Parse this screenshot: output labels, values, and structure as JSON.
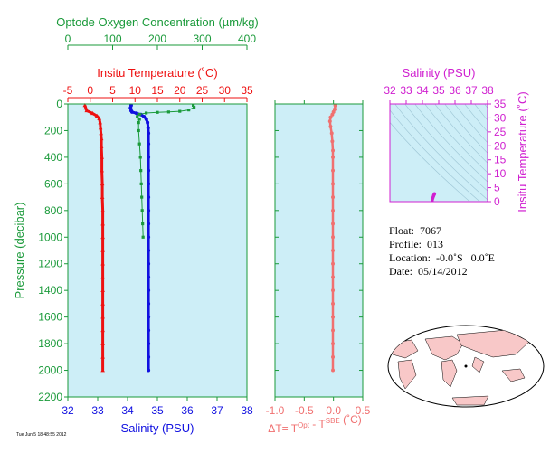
{
  "info": {
    "float_label": "Float:",
    "float_value": "7067",
    "profile_label": "Profile:",
    "profile_value": "013",
    "location_label": "Location:",
    "location_value": "-0.0˚S   0.0˚E",
    "date_label": "Date:",
    "date_value": "05/14/2012"
  },
  "stamp": "Tue Jun 5 18:48:55 2012",
  "colors": {
    "panel_bg": "#cdeef7",
    "oxygen": "#1a9a3a",
    "temperature": "#ee1111",
    "salinity": "#1010e0",
    "dt": "#f07070",
    "ts": "#d020d0",
    "land": "#f8c8c8"
  },
  "chart_data": [
    {
      "type": "line",
      "panel": "profiles",
      "ylabel": "Pressure (decibar)",
      "y_ticks": [
        0,
        200,
        400,
        600,
        800,
        1000,
        1200,
        1400,
        1600,
        1800,
        2000,
        2200
      ],
      "ylim": [
        2200,
        0
      ],
      "axes": {
        "salinity": {
          "label": "Salinity (PSU)",
          "lim": [
            32,
            38
          ],
          "ticks": [
            32,
            33,
            34,
            35,
            36,
            37,
            38
          ]
        },
        "temperature": {
          "label": "Insitu Temperature (˚C)",
          "lim": [
            -5,
            35
          ],
          "ticks": [
            -5,
            0,
            5,
            10,
            15,
            20,
            25,
            30,
            35
          ]
        },
        "oxygen": {
          "label": "Optode Oxygen Concentration (µm/kg)",
          "lim": [
            0,
            400
          ],
          "ticks": [
            0,
            100,
            200,
            300,
            400
          ]
        }
      },
      "series": [
        {
          "key": "temperature",
          "axis": "temperature",
          "marker": "triangle",
          "points": [
            [
              -1.2,
              10
            ],
            [
              -1.0,
              30
            ],
            [
              -0.8,
              50
            ],
            [
              0.5,
              70
            ],
            [
              1.5,
              90
            ],
            [
              2.0,
              110
            ],
            [
              2.2,
              140
            ],
            [
              2.3,
              180
            ],
            [
              2.4,
              220
            ],
            [
              2.5,
              260
            ],
            [
              2.5,
              320
            ],
            [
              2.6,
              400
            ],
            [
              2.6,
              500
            ],
            [
              2.7,
              600
            ],
            [
              2.7,
              700
            ],
            [
              2.8,
              800
            ],
            [
              2.8,
              900
            ],
            [
              2.8,
              1000
            ],
            [
              2.8,
              1100
            ],
            [
              2.8,
              1200
            ],
            [
              2.8,
              1300
            ],
            [
              2.8,
              1400
            ],
            [
              2.8,
              1500
            ],
            [
              2.8,
              1600
            ],
            [
              2.8,
              1700
            ],
            [
              2.8,
              1800
            ],
            [
              2.8,
              1900
            ],
            [
              2.8,
              2000
            ]
          ]
        },
        {
          "key": "salinity",
          "axis": "salinity",
          "marker": "circle",
          "points": [
            [
              34.12,
              10
            ],
            [
              34.1,
              30
            ],
            [
              34.12,
              50
            ],
            [
              34.15,
              60
            ],
            [
              34.3,
              70
            ],
            [
              34.45,
              80
            ],
            [
              34.55,
              95
            ],
            [
              34.63,
              115
            ],
            [
              34.67,
              140
            ],
            [
              34.69,
              180
            ],
            [
              34.7,
              220
            ],
            [
              34.7,
              300
            ],
            [
              34.7,
              400
            ],
            [
              34.7,
              500
            ],
            [
              34.7,
              600
            ],
            [
              34.7,
              700
            ],
            [
              34.7,
              800
            ],
            [
              34.7,
              900
            ],
            [
              34.7,
              1000
            ],
            [
              34.7,
              1100
            ],
            [
              34.7,
              1200
            ],
            [
              34.7,
              1300
            ],
            [
              34.7,
              1400
            ],
            [
              34.7,
              1500
            ],
            [
              34.7,
              1600
            ],
            [
              34.7,
              1700
            ],
            [
              34.7,
              1800
            ],
            [
              34.7,
              1900
            ],
            [
              34.7,
              2000
            ]
          ]
        },
        {
          "key": "oxygen",
          "axis": "oxygen",
          "marker": "square",
          "points": [
            [
              280,
              10
            ],
            [
              282,
              25
            ],
            [
              270,
              45
            ],
            [
              250,
              55
            ],
            [
              225,
              60
            ],
            [
              200,
              63
            ],
            [
              175,
              68
            ],
            [
              160,
              78
            ],
            [
              155,
              95
            ],
            [
              160,
              115
            ],
            [
              158,
              140
            ],
            [
              158,
              200
            ],
            [
              160,
              300
            ],
            [
              162,
              400
            ],
            [
              163,
              500
            ],
            [
              164,
              600
            ],
            [
              165,
              700
            ],
            [
              166,
              800
            ],
            [
              167,
              900
            ],
            [
              168,
              1000
            ]
          ]
        }
      ]
    },
    {
      "type": "line",
      "panel": "delta-t",
      "xlabel": "ΔT= T",
      "xlabel_sup1": "Opt",
      "xlabel_mid": " - T",
      "xlabel_sup2": "SBE",
      "xlabel_end": " (˚C)",
      "xlim": [
        -1.0,
        0.5
      ],
      "x_ticks": [
        "-1.0",
        "-0.5",
        "0.0",
        "0.5"
      ],
      "x_tick_values": [
        -1.0,
        -0.5,
        0.0,
        0.5
      ],
      "ylim": [
        2200,
        0
      ],
      "series": [
        {
          "key": "dt",
          "points": [
            [
              0.03,
              10
            ],
            [
              0.02,
              40
            ],
            [
              0.0,
              60
            ],
            [
              -0.02,
              80
            ],
            [
              -0.05,
              100
            ],
            [
              -0.06,
              130
            ],
            [
              -0.05,
              170
            ],
            [
              -0.03,
              220
            ],
            [
              -0.02,
              280
            ],
            [
              -0.01,
              350
            ],
            [
              -0.01,
              400
            ],
            [
              -0.01,
              500
            ],
            [
              -0.01,
              600
            ],
            [
              -0.01,
              700
            ],
            [
              -0.01,
              800
            ],
            [
              -0.01,
              900
            ],
            [
              -0.01,
              1000
            ],
            [
              -0.01,
              1100
            ],
            [
              -0.01,
              1200
            ],
            [
              -0.01,
              1300
            ],
            [
              -0.01,
              1400
            ],
            [
              -0.01,
              1500
            ],
            [
              -0.01,
              1600
            ],
            [
              -0.01,
              1700
            ],
            [
              -0.01,
              1800
            ],
            [
              -0.01,
              1900
            ],
            [
              -0.01,
              2000
            ]
          ]
        }
      ]
    },
    {
      "type": "scatter",
      "panel": "ts-diagram",
      "xlabel": "Salinity (PSU)",
      "ylabel": "Insitu Temperature (˚C)",
      "xlim": [
        32,
        38
      ],
      "ylim": [
        0,
        35
      ],
      "x_ticks": [
        32,
        33,
        34,
        35,
        36,
        37,
        38
      ],
      "y_ticks": [
        0,
        5,
        10,
        15,
        20,
        25,
        30,
        35
      ],
      "points": [
        [
          34.6,
          0.5
        ],
        [
          34.62,
          1.0
        ],
        [
          34.65,
          1.5
        ],
        [
          34.68,
          2.0
        ],
        [
          34.7,
          2.3
        ],
        [
          34.72,
          2.6
        ],
        [
          34.74,
          2.8
        ]
      ]
    }
  ]
}
